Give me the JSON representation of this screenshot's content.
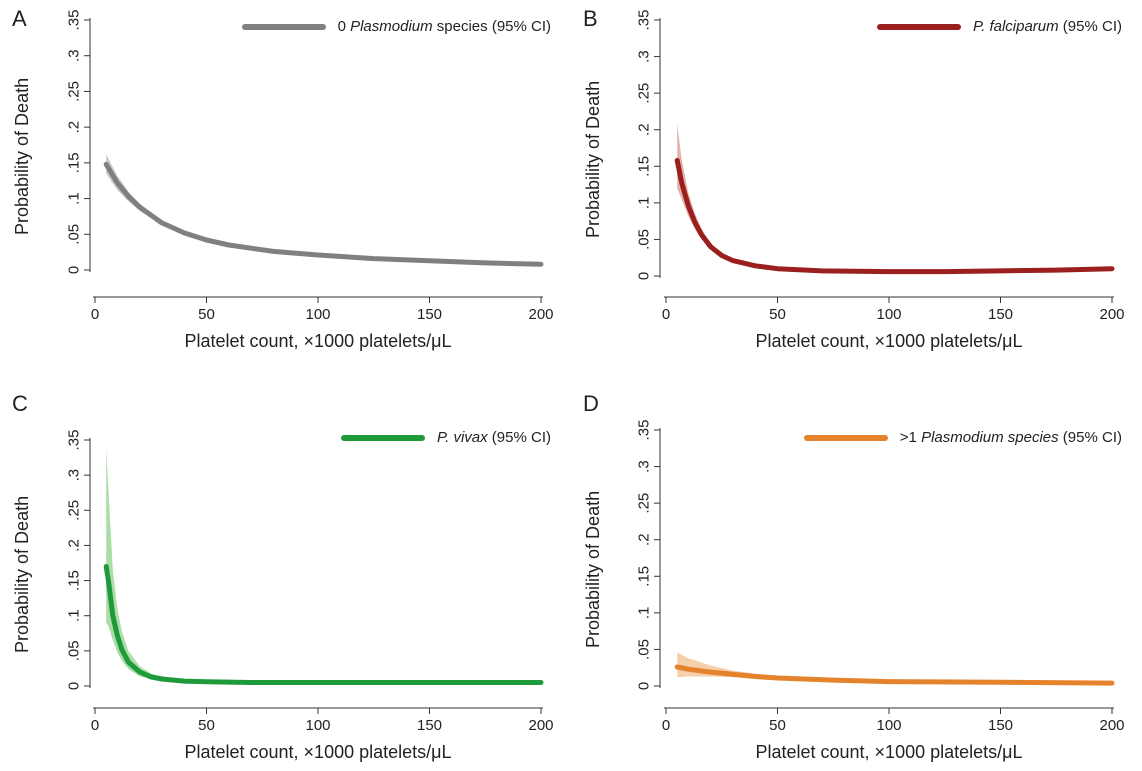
{
  "chart_data": [
    {
      "type": "line",
      "panel_label": "A",
      "ylabel": "Probability of Death",
      "xlabel": "Platelet count, ×1000 platelets/μL",
      "xlim": [
        0,
        200
      ],
      "ylim": [
        0,
        0.35
      ],
      "xticks": [
        0,
        50,
        100,
        150,
        200
      ],
      "yticks": [
        "0",
        ".05",
        ".1",
        ".15",
        ".2",
        ".25",
        ".3",
        ".35"
      ],
      "legend": {
        "prefix": "0 ",
        "italic": "Plasmodium",
        "suffix": " species (95% CI)",
        "position": "top-right"
      },
      "color": "#808080",
      "ci_color": "#b8b8b8",
      "series": [
        {
          "name": "0 Plasmodium species",
          "x": [
            5,
            10,
            15,
            20,
            30,
            40,
            50,
            60,
            80,
            100,
            125,
            150,
            175,
            200
          ],
          "y": [
            0.148,
            0.122,
            0.103,
            0.088,
            0.066,
            0.052,
            0.042,
            0.035,
            0.026,
            0.021,
            0.016,
            0.013,
            0.01,
            0.008
          ],
          "ci_low": [
            0.135,
            0.112,
            0.096,
            0.083,
            0.063,
            0.05,
            0.041,
            0.034,
            0.025,
            0.02,
            0.015,
            0.012,
            0.009,
            0.007
          ],
          "ci_high": [
            0.162,
            0.132,
            0.11,
            0.093,
            0.069,
            0.054,
            0.044,
            0.036,
            0.027,
            0.022,
            0.017,
            0.014,
            0.011,
            0.009
          ]
        }
      ]
    },
    {
      "type": "line",
      "panel_label": "B",
      "ylabel": "Probability of Death",
      "xlabel": "Platelet count, ×1000 platelets/μL",
      "xlim": [
        0,
        200
      ],
      "ylim": [
        0,
        0.35
      ],
      "xticks": [
        0,
        50,
        100,
        150,
        200
      ],
      "yticks": [
        "0",
        ".05",
        ".1",
        ".15",
        ".2",
        ".25",
        ".3",
        ".35"
      ],
      "legend": {
        "prefix": "",
        "italic": "P. falciparum",
        "suffix": " (95% CI)",
        "position": "top-right"
      },
      "color": "#9c1f1f",
      "ci_color": "#d79a8f",
      "series": [
        {
          "name": "P. falciparum",
          "x": [
            5,
            7,
            10,
            13,
            16,
            20,
            25,
            30,
            40,
            50,
            70,
            100,
            125,
            150,
            175,
            200
          ],
          "y": [
            0.158,
            0.128,
            0.096,
            0.073,
            0.056,
            0.04,
            0.028,
            0.021,
            0.014,
            0.01,
            0.007,
            0.006,
            0.006,
            0.007,
            0.008,
            0.01
          ],
          "ci_low": [
            0.12,
            0.105,
            0.082,
            0.064,
            0.05,
            0.036,
            0.026,
            0.019,
            0.012,
            0.009,
            0.006,
            0.005,
            0.005,
            0.006,
            0.007,
            0.008
          ],
          "ci_high": [
            0.208,
            0.16,
            0.114,
            0.085,
            0.064,
            0.045,
            0.031,
            0.023,
            0.016,
            0.011,
            0.008,
            0.007,
            0.007,
            0.008,
            0.009,
            0.012
          ]
        }
      ]
    },
    {
      "type": "line",
      "panel_label": "C",
      "ylabel": "Probability of Death",
      "xlabel": "Platelet count, ×1000 platelets/μL",
      "xlim": [
        0,
        200
      ],
      "ylim": [
        0,
        0.35
      ],
      "xticks": [
        0,
        50,
        100,
        150,
        200
      ],
      "yticks": [
        "0",
        ".05",
        ".1",
        ".15",
        ".2",
        ".25",
        ".3",
        ".35"
      ],
      "legend": {
        "prefix": "",
        "italic": "P. vivax",
        "suffix": " (95% CI)",
        "position": "top-right"
      },
      "color": "#1f9a3a",
      "ci_color": "#8fd18a",
      "series": [
        {
          "name": "P. vivax",
          "x": [
            5,
            6,
            8,
            10,
            12,
            15,
            20,
            25,
            30,
            40,
            50,
            70,
            100,
            150,
            200
          ],
          "y": [
            0.17,
            0.15,
            0.1,
            0.072,
            0.052,
            0.034,
            0.02,
            0.013,
            0.01,
            0.007,
            0.006,
            0.005,
            0.005,
            0.005,
            0.005
          ],
          "ci_low": [
            0.09,
            0.085,
            0.065,
            0.048,
            0.036,
            0.024,
            0.014,
            0.01,
            0.008,
            0.006,
            0.005,
            0.004,
            0.004,
            0.004,
            0.004
          ],
          "ci_high": [
            0.338,
            0.28,
            0.165,
            0.11,
            0.078,
            0.05,
            0.028,
            0.018,
            0.013,
            0.009,
            0.007,
            0.006,
            0.006,
            0.006,
            0.006
          ]
        }
      ]
    },
    {
      "type": "line",
      "panel_label": "D",
      "ylabel": "Probability of Death",
      "xlabel": "Platelet count, ×1000 platelets/μL",
      "xlim": [
        0,
        200
      ],
      "ylim": [
        0,
        0.35
      ],
      "xticks": [
        0,
        50,
        100,
        150,
        200
      ],
      "yticks": [
        "0",
        ".05",
        ".1",
        ".15",
        ".2",
        ".25",
        ".3",
        ".35"
      ],
      "legend": {
        "prefix": ">1 ",
        "italic": "Plasmodium species",
        "suffix": " (95% CI)",
        "position": "top-right"
      },
      "color": "#e5822c",
      "ci_color": "#f3c08f",
      "series": [
        {
          "name": ">1 Plasmodium species",
          "x": [
            5,
            10,
            20,
            30,
            40,
            50,
            75,
            100,
            150,
            200
          ],
          "y": [
            0.026,
            0.023,
            0.019,
            0.016,
            0.013,
            0.011,
            0.008,
            0.006,
            0.005,
            0.004
          ],
          "ci_low": [
            0.012,
            0.013,
            0.013,
            0.012,
            0.01,
            0.009,
            0.007,
            0.005,
            0.004,
            0.003
          ],
          "ci_high": [
            0.046,
            0.038,
            0.028,
            0.021,
            0.017,
            0.014,
            0.01,
            0.008,
            0.006,
            0.005
          ]
        }
      ]
    }
  ]
}
